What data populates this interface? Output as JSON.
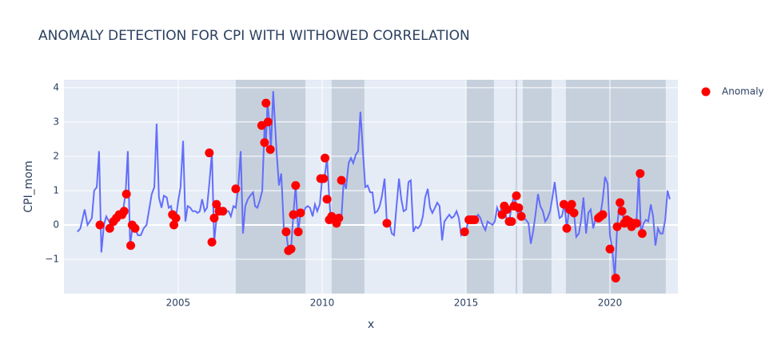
{
  "chart_data": {
    "type": "line",
    "title": "ANOMALY DETECTION FOR CPI WITH WITHOWED CORRELATION",
    "x_label": "x",
    "y_label": "CPI_mom",
    "xlim": [
      2001.03,
      2022.36
    ],
    "ylim": [
      -2.0,
      4.23
    ],
    "xticks": [
      2005,
      2010,
      2015,
      2020
    ],
    "yticks": [
      {
        "value": -1,
        "label": "−1"
      },
      0,
      1,
      2,
      3,
      4
    ],
    "grid": true,
    "legend": "top-right",
    "shaded_regions": {
      "color": "#6b7a8f",
      "ranges": [
        [
          2007.0,
          2009.42
        ],
        [
          2010.33,
          2011.47
        ],
        [
          2015.0,
          2015.97
        ],
        [
          2016.72,
          2016.78
        ],
        [
          2016.97,
          2017.97
        ],
        [
          2018.47,
          2021.94
        ]
      ]
    },
    "series": [
      {
        "mode": "line",
        "color": "#636efa",
        "x": [
          2001.5,
          2001.6,
          2001.75,
          2001.85,
          2002.0,
          2002.08,
          2002.17,
          2002.25,
          2002.33,
          2002.42,
          2002.5,
          2002.6,
          2002.7,
          2002.8,
          2002.9,
          2003.0,
          2003.08,
          2003.17,
          2003.25,
          2003.33,
          2003.42,
          2003.5,
          2003.6,
          2003.7,
          2003.8,
          2003.9,
          2004.0,
          2004.08,
          2004.17,
          2004.25,
          2004.33,
          2004.42,
          2004.5,
          2004.6,
          2004.67,
          2004.75,
          2004.8,
          2004.85,
          2004.92,
          2005.0,
          2005.08,
          2005.17,
          2005.25,
          2005.33,
          2005.42,
          2005.5,
          2005.6,
          2005.67,
          2005.75,
          2005.83,
          2005.92,
          2006.0,
          2006.08,
          2006.17,
          2006.25,
          2006.33,
          2006.42,
          2006.5,
          2006.58,
          2006.67,
          2006.75,
          2006.83,
          2006.92,
          2007.0,
          2007.08,
          2007.17,
          2007.25,
          2007.33,
          2007.42,
          2007.5,
          2007.6,
          2007.67,
          2007.75,
          2007.83,
          2007.92,
          2008.0,
          2008.05,
          2008.1,
          2008.17,
          2008.22,
          2008.3,
          2008.42,
          2008.5,
          2008.58,
          2008.67,
          2008.75,
          2008.83,
          2008.92,
          2009.0,
          2009.08,
          2009.17,
          2009.25,
          2009.33,
          2009.42,
          2009.5,
          2009.58,
          2009.67,
          2009.75,
          2009.83,
          2009.92,
          2010.0,
          2010.08,
          2010.17,
          2010.25,
          2010.3,
          2010.42,
          2010.5,
          2010.58,
          2010.67,
          2010.75,
          2010.83,
          2010.92,
          2011.0,
          2011.08,
          2011.17,
          2011.25,
          2011.33,
          2011.42,
          2011.5,
          2011.58,
          2011.67,
          2011.75,
          2011.83,
          2011.92,
          2012.0,
          2012.08,
          2012.17,
          2012.25,
          2012.33,
          2012.42,
          2012.5,
          2012.58,
          2012.67,
          2012.75,
          2012.83,
          2012.92,
          2013.0,
          2013.08,
          2013.17,
          2013.25,
          2013.33,
          2013.42,
          2013.5,
          2013.58,
          2013.67,
          2013.75,
          2013.83,
          2013.92,
          2014.0,
          2014.08,
          2014.17,
          2014.25,
          2014.33,
          2014.42,
          2014.5,
          2014.58,
          2014.67,
          2014.75,
          2014.83,
          2014.92,
          2015.0,
          2015.08,
          2015.17,
          2015.25,
          2015.33,
          2015.42,
          2015.5,
          2015.58,
          2015.67,
          2015.75,
          2015.83,
          2015.92,
          2016.0,
          2016.08,
          2016.17,
          2016.25,
          2016.33,
          2016.42,
          2016.5,
          2016.58,
          2016.67,
          2016.75,
          2016.83,
          2016.92,
          2017.0,
          2017.08,
          2017.17,
          2017.25,
          2017.33,
          2017.42,
          2017.5,
          2017.58,
          2017.67,
          2017.75,
          2017.83,
          2017.92,
          2018.0,
          2018.08,
          2018.17,
          2018.25,
          2018.33,
          2018.42,
          2018.5,
          2018.58,
          2018.67,
          2018.75,
          2018.83,
          2018.92,
          2019.0,
          2019.08,
          2019.17,
          2019.25,
          2019.33,
          2019.42,
          2019.5,
          2019.58,
          2019.67,
          2019.75,
          2019.83,
          2019.92,
          2020.0,
          2020.08,
          2020.17,
          2020.25,
          2020.33,
          2020.42,
          2020.5,
          2020.58,
          2020.67,
          2020.75,
          2020.83,
          2020.92,
          2021.0,
          2021.08,
          2021.17,
          2021.25,
          2021.33,
          2021.42,
          2021.5,
          2021.58,
          2021.67,
          2021.75,
          2021.83,
          2021.92,
          2022.0,
          2022.08
        ],
        "values": [
          -0.2,
          -0.1,
          0.45,
          0.0,
          0.2,
          1.0,
          1.1,
          2.15,
          -0.8,
          0.0,
          0.25,
          0.1,
          -0.1,
          0.1,
          0.25,
          0.3,
          0.4,
          0.9,
          2.15,
          -0.6,
          0.0,
          -0.1,
          -0.3,
          -0.3,
          -0.1,
          0.0,
          0.5,
          0.9,
          1.1,
          2.95,
          0.8,
          0.5,
          0.85,
          0.8,
          0.5,
          0.55,
          0.3,
          0.0,
          0.2,
          0.7,
          1.1,
          2.45,
          0.1,
          0.55,
          0.5,
          0.4,
          0.4,
          0.35,
          0.4,
          0.75,
          0.4,
          0.5,
          1.2,
          2.1,
          -0.5,
          0.2,
          0.6,
          0.4,
          0.4,
          0.4,
          0.4,
          0.25,
          0.55,
          0.5,
          1.05,
          2.15,
          -0.25,
          0.55,
          0.75,
          0.85,
          0.95,
          0.55,
          0.5,
          0.7,
          1.0,
          2.9,
          2.4,
          3.55,
          3.0,
          2.2,
          3.9,
          2.1,
          1.15,
          1.5,
          -0.1,
          -0.2,
          -0.75,
          -0.7,
          0.3,
          1.15,
          -0.2,
          0.35,
          0.3,
          0.5,
          0.55,
          0.5,
          0.25,
          0.6,
          0.4,
          0.6,
          1.35,
          1.35,
          1.95,
          0.75,
          0.15,
          0.25,
          0.2,
          0.05,
          0.2,
          1.3,
          1.05,
          1.8,
          1.95,
          1.8,
          2.05,
          2.15,
          3.3,
          2.1,
          1.1,
          1.15,
          0.95,
          0.95,
          0.35,
          0.4,
          0.55,
          0.85,
          1.35,
          0.05,
          0.1,
          -0.25,
          -0.3,
          0.5,
          1.35,
          0.75,
          0.4,
          0.45,
          1.25,
          1.3,
          -0.2,
          -0.05,
          -0.1,
          0.0,
          0.25,
          0.8,
          1.05,
          0.5,
          0.35,
          0.5,
          0.65,
          0.55,
          -0.45,
          0.1,
          0.2,
          0.3,
          0.2,
          0.25,
          0.4,
          0.2,
          -0.3,
          -0.2,
          -0.2,
          0.15,
          0.15,
          0.15,
          0.2,
          0.3,
          0.2,
          0.0,
          -0.15,
          0.1,
          0.05,
          0.0,
          0.1,
          0.5,
          0.3,
          0.55,
          0.55,
          0.1,
          0.1,
          0.55,
          0.85,
          0.5,
          0.25,
          0.4,
          0.2,
          0.15,
          0.05,
          -0.55,
          -0.2,
          0.35,
          0.9,
          0.55,
          0.4,
          0.1,
          0.2,
          0.4,
          0.8,
          1.25,
          0.6,
          0.2,
          0.25,
          0.6,
          -0.1,
          0.45,
          0.6,
          0.35,
          -0.35,
          -0.25,
          0.15,
          0.8,
          -0.25,
          0.35,
          0.45,
          -0.1,
          0.2,
          0.25,
          0.3,
          0.75,
          1.4,
          1.2,
          -0.3,
          -0.7,
          -1.55,
          -0.05,
          0.65,
          0.4,
          0.05,
          0.15,
          0.1,
          -0.05,
          0.05,
          0.05,
          1.5,
          -0.25,
          0.05,
          0.15,
          0.1,
          0.6,
          0.25,
          -0.6,
          -0.1,
          -0.25,
          -0.25,
          0.15,
          1.0,
          0.75
        ]
      },
      {
        "mode": "markers",
        "name": "Anomaly",
        "color": "#ff0000",
        "x": [
          2002.28,
          2002.62,
          2002.75,
          2002.85,
          2002.95,
          2003.05,
          2003.12,
          2003.2,
          2003.35,
          2003.4,
          2003.5,
          2004.8,
          2004.85,
          2004.92,
          2006.08,
          2006.17,
          2006.25,
          2006.33,
          2006.42,
          2006.55,
          2007.0,
          2007.9,
          2008.0,
          2008.05,
          2008.12,
          2008.2,
          2008.75,
          2008.83,
          2008.92,
          2009.0,
          2009.08,
          2009.17,
          2009.25,
          2009.95,
          2010.05,
          2010.1,
          2010.17,
          2010.25,
          2010.33,
          2010.5,
          2010.58,
          2010.67,
          2012.25,
          2014.95,
          2015.1,
          2015.2,
          2015.3,
          2016.25,
          2016.33,
          2016.42,
          2016.5,
          2016.58,
          2016.67,
          2016.75,
          2016.83,
          2016.92,
          2018.4,
          2018.5,
          2018.6,
          2018.67,
          2018.75,
          2019.6,
          2019.67,
          2019.75,
          2020.0,
          2020.2,
          2020.25,
          2020.35,
          2020.42,
          2020.5,
          2020.58,
          2020.67,
          2020.75,
          2020.83,
          2020.92,
          2021.05,
          2021.12
        ],
        "values": [
          0.0,
          -0.1,
          0.1,
          0.2,
          0.3,
          0.3,
          0.4,
          0.9,
          -0.6,
          0.0,
          -0.1,
          0.3,
          0.0,
          0.2,
          2.1,
          -0.5,
          0.2,
          0.6,
          0.4,
          0.4,
          1.05,
          2.9,
          2.4,
          3.55,
          3.0,
          2.2,
          -0.2,
          -0.75,
          -0.7,
          0.3,
          1.15,
          -0.2,
          0.35,
          1.35,
          1.35,
          1.95,
          0.75,
          0.15,
          0.25,
          0.05,
          0.2,
          1.3,
          0.05,
          -0.2,
          0.15,
          0.15,
          0.15,
          0.3,
          0.55,
          0.45,
          0.1,
          0.1,
          0.55,
          0.85,
          0.5,
          0.25,
          0.6,
          -0.1,
          0.45,
          0.6,
          0.35,
          0.2,
          0.25,
          0.3,
          -0.7,
          -1.55,
          -0.05,
          0.65,
          0.4,
          0.05,
          0.15,
          0.1,
          -0.05,
          0.05,
          0.05,
          1.5,
          -0.25
        ]
      }
    ]
  }
}
